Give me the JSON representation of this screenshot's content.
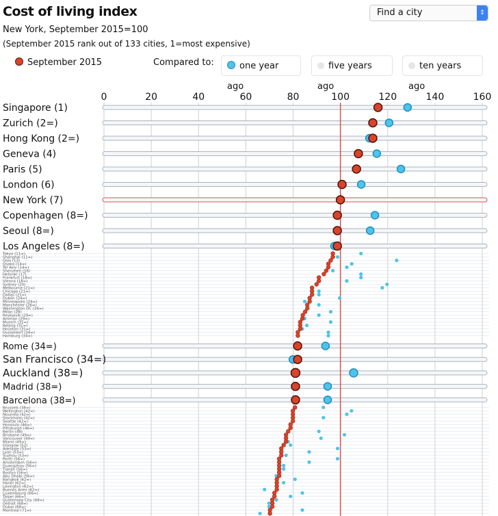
{
  "header": {
    "title": "Cost of living index",
    "subtitle": "New York, September 2015=100",
    "note": "(September 2015 rank out of 133 cities, 1=most expensive)",
    "find_placeholder": "Find a city"
  },
  "legend": {
    "current": "September 2015",
    "compared_label": "Compared to:",
    "options": [
      {
        "label": "one year ago",
        "active": true
      },
      {
        "label": "five years ago",
        "active": false
      },
      {
        "label": "ten years ago",
        "active": false
      }
    ]
  },
  "colors": {
    "current": "#d9442a",
    "compare": "#4fc3ea",
    "inactive": "#e6e6e6",
    "reference": "#d9534f"
  },
  "chart_data": {
    "type": "scatter",
    "xlim": [
      0,
      160
    ],
    "xticks": [
      0,
      20,
      40,
      60,
      80,
      100,
      120,
      140,
      160
    ],
    "reference_line": 100,
    "series": [
      {
        "name": "September 2015",
        "key": "sept"
      },
      {
        "name": "one year ago",
        "key": "year_ago"
      }
    ],
    "rows": [
      {
        "city": "Singapore (1)",
        "featured": true,
        "sept": 115.9,
        "year_ago": 128.4
      },
      {
        "city": "Zurich (2=)",
        "featured": true,
        "sept": 113.7,
        "year_ago": 120.6
      },
      {
        "city": "Hong Kong (2=)",
        "featured": true,
        "sept": 113.7,
        "year_ago": 112.3
      },
      {
        "city": "Geneva (4)",
        "featured": true,
        "sept": 107.6,
        "year_ago": 115.4
      },
      {
        "city": "Paris (5)",
        "featured": true,
        "sept": 106.8,
        "year_ago": 125.6
      },
      {
        "city": "London (6)",
        "featured": true,
        "sept": 100.7,
        "year_ago": 108.8
      },
      {
        "city": "New York (7)",
        "featured": true,
        "sept": 100,
        "year_ago": 100,
        "reference": true
      },
      {
        "city": "Copenhagen (8=)",
        "featured": true,
        "sept": 98.7,
        "year_ago": 114.6
      },
      {
        "city": "Seoul (8=)",
        "featured": true,
        "sept": 98.7,
        "year_ago": 112.6
      },
      {
        "city": "Los Angeles (8=)",
        "featured": true,
        "sept": 98.7,
        "year_ago": 97.5
      },
      {
        "city": "Tokyo (11=)",
        "sept": 96.8,
        "year_ago": 108.7
      },
      {
        "city": "Shanghai (11=)",
        "sept": 96.8,
        "year_ago": 98.8
      },
      {
        "city": "Oslo (13)",
        "sept": 95.9,
        "year_ago": 123.8
      },
      {
        "city": "Osaka (14=)",
        "sept": 94.9,
        "year_ago": 104.8
      },
      {
        "city": "Tel Aviv (14=)",
        "sept": 94.9,
        "year_ago": 102.7
      },
      {
        "city": "Shenzhen (16)",
        "sept": 94.0,
        "year_ago": 96.8
      },
      {
        "city": "Helsinki (17)",
        "sept": 93.0,
        "year_ago": 108.7
      },
      {
        "city": "Frankfurt (18=)",
        "sept": 90.9,
        "year_ago": 108.7
      },
      {
        "city": "Vienna (18=)",
        "sept": 90.9,
        "year_ago": 102.7
      },
      {
        "city": "Sydney (20)",
        "sept": 89.9,
        "year_ago": 119.7
      },
      {
        "city": "Melbourne (21=)",
        "sept": 88.0,
        "year_ago": 117.7
      },
      {
        "city": "Chicago (21=)",
        "sept": 88.0,
        "year_ago": 90.9
      },
      {
        "city": "Dallas (21=)",
        "sept": 88.0,
        "year_ago": 90.9
      },
      {
        "city": "Dublin (24=)",
        "sept": 87.0,
        "year_ago": 99.7
      },
      {
        "city": "Minneapolis (24=)",
        "sept": 87.0,
        "year_ago": 84.9
      },
      {
        "city": "Manchester (26=)",
        "sept": 86.0,
        "year_ago": 90.9
      },
      {
        "city": "Washington DC (26=)",
        "sept": 86.0,
        "year_ago": 86.0
      },
      {
        "city": "Milan (28)",
        "sept": 85.1,
        "year_ago": 95.9
      },
      {
        "city": "Reykjavik (29=)",
        "sept": 84.1,
        "year_ago": 90.9
      },
      {
        "city": "Amman (29=)",
        "sept": 83.9,
        "year_ago": 84.9
      },
      {
        "city": "Munich (31=)",
        "sept": 83.0,
        "year_ago": 95.9
      },
      {
        "city": "Beijing (31=)",
        "sept": 83.0,
        "year_ago": 85.8
      },
      {
        "city": "Houston (31=)",
        "sept": 83.0,
        "year_ago": 83.9
      },
      {
        "city": "Dusseldorf (34=)",
        "sept": 82.0,
        "year_ago": 94.9
      },
      {
        "city": "Hamburg (34=)",
        "sept": 82.0,
        "year_ago": 94.9
      },
      {
        "city": "Rome (34=)",
        "featured": true,
        "sept": 81.9,
        "year_ago": 93.7
      },
      {
        "city": "San Francisco (34=)",
        "featured": true,
        "sept": 81.9,
        "year_ago": 79.9
      },
      {
        "city": "Auckland (38=)",
        "featured": true,
        "sept": 81.0,
        "year_ago": 105.6
      },
      {
        "city": "Madrid (38=)",
        "featured": true,
        "sept": 81.0,
        "year_ago": 94.6
      },
      {
        "city": "Barcelona (38=)",
        "featured": true,
        "sept": 81.0,
        "year_ago": 94.6
      },
      {
        "city": "Brussels (38=)",
        "sept": 80.8,
        "year_ago": 92.8
      },
      {
        "city": "Wellington (42=)",
        "sept": 79.9,
        "year_ago": 104.7
      },
      {
        "city": "Noumea (42=)",
        "sept": 79.9,
        "year_ago": 102.7
      },
      {
        "city": "Stockholm (42=)",
        "sept": 79.9,
        "year_ago": 92.8
      },
      {
        "city": "Seattle (42=)",
        "sept": 79.9,
        "year_ago": null
      },
      {
        "city": "Honolulu (46=)",
        "sept": 78.9,
        "year_ago": null
      },
      {
        "city": "Pittsburgh (46=)",
        "sept": 78.9,
        "year_ago": null
      },
      {
        "city": "Berlin (48)",
        "sept": 77.9,
        "year_ago": 90.9
      },
      {
        "city": "Brisbane (49=)",
        "sept": 77.0,
        "year_ago": 101.7
      },
      {
        "city": "Vancouver (49=)",
        "sept": 77.0,
        "year_ago": 91.8
      },
      {
        "city": "Miami (49=)",
        "sept": 77.0,
        "year_ago": 77.9
      },
      {
        "city": "Glasgow (52)",
        "sept": 76.0,
        "year_ago": 78.9
      },
      {
        "city": "Adelaide (53=)",
        "sept": 75.0,
        "year_ago": 98.8
      },
      {
        "city": "Lyon (53=)",
        "sept": 75.0,
        "year_ago": 86.8
      },
      {
        "city": "Suzhou (53=)",
        "sept": 75.0,
        "year_ago": 77.0
      },
      {
        "city": "Perth (56=)",
        "sept": 74.1,
        "year_ago": 98.8
      },
      {
        "city": "Amsterdam (56=)",
        "sept": 74.1,
        "year_ago": 86.8
      },
      {
        "city": "Guangzhou (56=)",
        "sept": 74.1,
        "year_ago": 76.0
      },
      {
        "city": "Tianjin (56=)",
        "sept": 74.1,
        "year_ago": 76.0
      },
      {
        "city": "Boston (56=)",
        "sept": 74.1,
        "year_ago": null
      },
      {
        "city": "Abu Dhabi (56=)",
        "sept": 74.1,
        "year_ago": 72.9
      },
      {
        "city": "Bangkok (62=)",
        "sept": 73.1,
        "year_ago": 80.8
      },
      {
        "city": "Hanoi (62=)",
        "sept": 73.1,
        "year_ago": 76.0
      },
      {
        "city": "Lexington (62=)",
        "sept": 73.1,
        "year_ago": null
      },
      {
        "city": "Buenos Aires (62=)",
        "sept": 73.1,
        "year_ago": 67.9
      },
      {
        "city": "Luxembourg (66=)",
        "sept": 72.1,
        "year_ago": 83.9
      },
      {
        "city": "Taipei (66=)",
        "sept": 72.1,
        "year_ago": 78.9
      },
      {
        "city": "Guatemala City (68=)",
        "sept": 71.2,
        "year_ago": 72.9
      },
      {
        "city": "Detroit (68=)",
        "sept": 71.2,
        "year_ago": 69.8
      },
      {
        "city": "Dubai (68=)",
        "sept": 71.2,
        "year_ago": 69.8
      },
      {
        "city": "Montreal (71=)",
        "sept": 70.2,
        "year_ago": 83.9
      },
      {
        "city": "",
        "sept": 70.2,
        "year_ago": 66.0
      }
    ]
  }
}
